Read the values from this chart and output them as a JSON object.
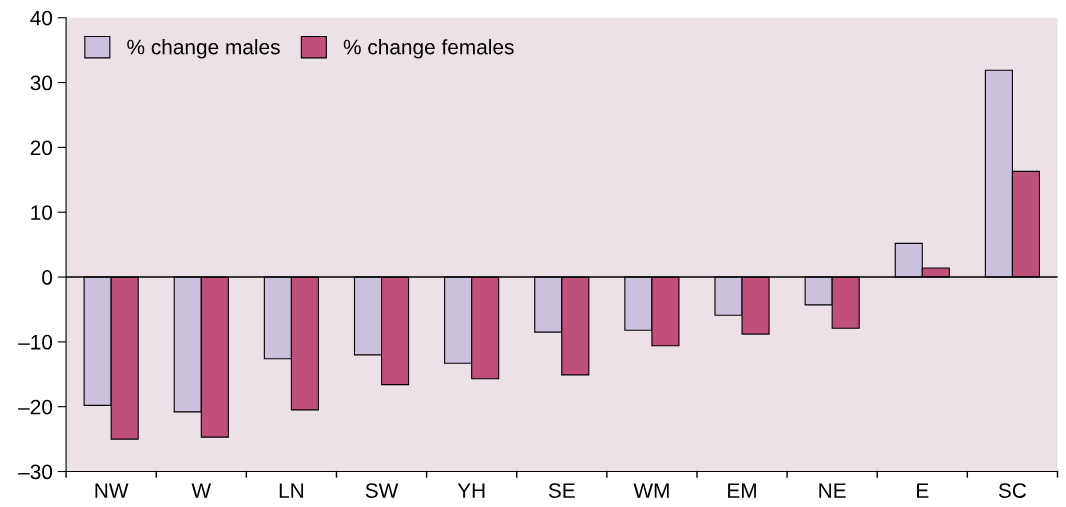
{
  "chart_data": {
    "type": "bar",
    "categories": [
      "NW",
      "W",
      "LN",
      "SW",
      "YH",
      "SE",
      "WM",
      "EM",
      "NE",
      "E",
      "SC"
    ],
    "series": [
      {
        "name": "% change males",
        "color": "#cbc1dd",
        "values": [
          -19.8,
          -20.8,
          -12.6,
          -12.0,
          -13.3,
          -8.5,
          -8.2,
          -5.9,
          -4.3,
          5.2,
          31.9
        ]
      },
      {
        "name": "% change females",
        "color": "#c04f7a",
        "values": [
          -25.0,
          -24.7,
          -20.5,
          -16.6,
          -15.7,
          -15.1,
          -10.6,
          -8.8,
          -7.9,
          1.4,
          16.3
        ]
      }
    ],
    "ylim": [
      -30,
      40
    ],
    "yticks": [
      {
        "value": -30,
        "label": "–30"
      },
      {
        "value": -20,
        "label": "–20"
      },
      {
        "value": -10,
        "label": "–10"
      },
      0,
      10,
      20,
      30,
      40
    ],
    "ref_lines": [
      {
        "axis": "y",
        "value": 0,
        "color": "#000000"
      }
    ],
    "grid": false,
    "legend": "top left"
  }
}
